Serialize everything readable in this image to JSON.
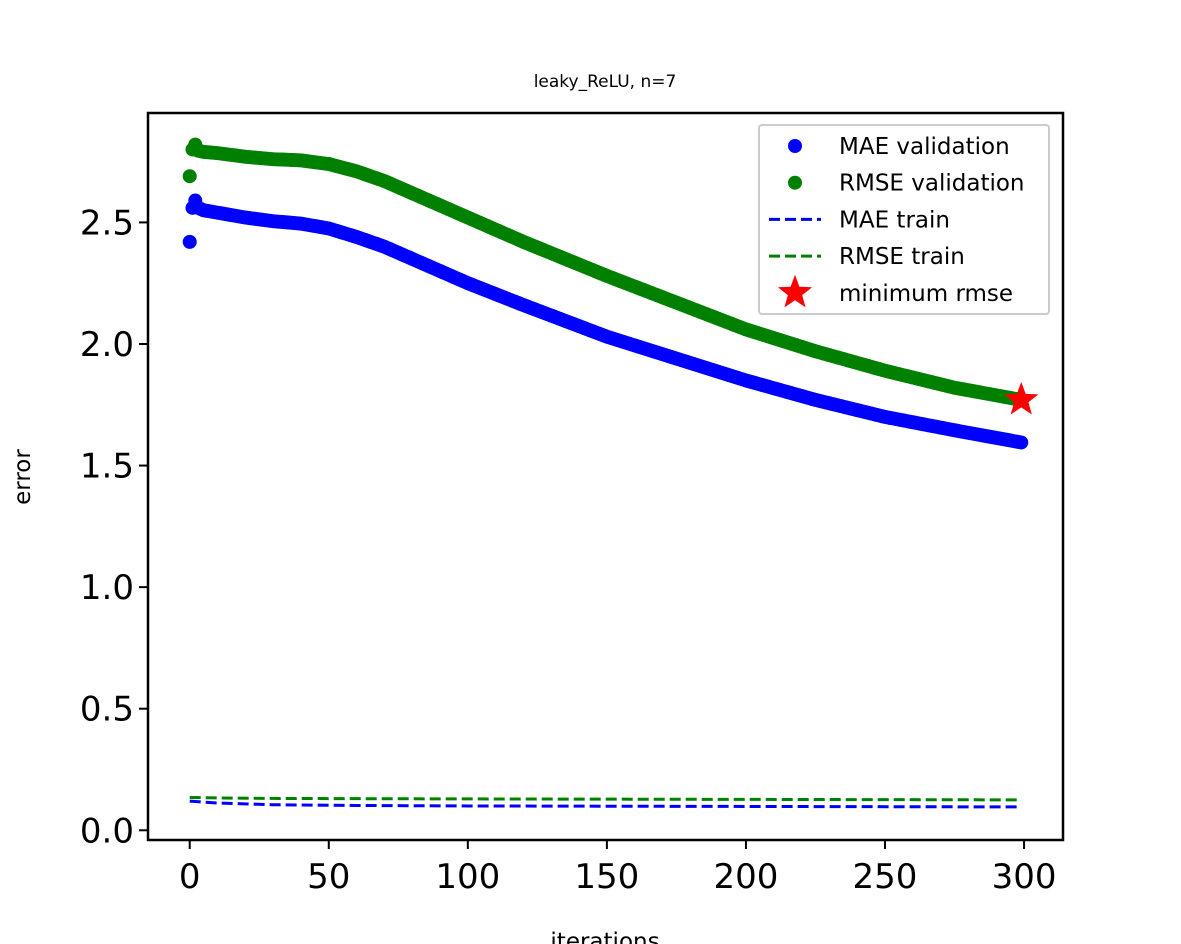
{
  "chart_data": {
    "type": "scatter",
    "title": "leaky_ReLU, n=7",
    "xlabel": "iterations",
    "ylabel": "error",
    "xlim": [
      -15,
      314
    ],
    "ylim": [
      -0.04,
      2.95
    ],
    "xticks": [
      "0",
      "50",
      "100",
      "150",
      "200",
      "250",
      "300"
    ],
    "yticks": [
      "0.0",
      "0.5",
      "1.0",
      "1.5",
      "2.0",
      "2.5"
    ],
    "grid": false,
    "legend_position": "top-right",
    "series": [
      {
        "name": "MAE validation",
        "kind": "markers",
        "color": "#0000ff",
        "x": [
          0,
          1,
          2,
          3,
          5,
          10,
          20,
          30,
          40,
          50,
          60,
          70,
          80,
          100,
          120,
          150,
          175,
          200,
          225,
          250,
          275,
          299
        ],
        "y": [
          2.42,
          2.56,
          2.59,
          2.56,
          2.55,
          2.54,
          2.52,
          2.505,
          2.495,
          2.475,
          2.44,
          2.4,
          2.35,
          2.25,
          2.16,
          2.03,
          1.94,
          1.85,
          1.77,
          1.7,
          1.645,
          1.595
        ]
      },
      {
        "name": "RMSE validation",
        "kind": "markers",
        "color": "#008000",
        "x": [
          0,
          1,
          2,
          3,
          5,
          10,
          20,
          30,
          40,
          50,
          60,
          70,
          80,
          100,
          120,
          150,
          175,
          200,
          225,
          250,
          275,
          299
        ],
        "y": [
          2.69,
          2.8,
          2.82,
          2.795,
          2.79,
          2.785,
          2.77,
          2.76,
          2.755,
          2.74,
          2.71,
          2.67,
          2.62,
          2.52,
          2.42,
          2.28,
          2.17,
          2.06,
          1.97,
          1.89,
          1.82,
          1.77
        ]
      },
      {
        "name": "MAE train",
        "kind": "dashed",
        "color": "#0000ff",
        "x": [
          0,
          10,
          30,
          60,
          100,
          150,
          200,
          250,
          299
        ],
        "y": [
          0.12,
          0.112,
          0.105,
          0.102,
          0.1,
          0.099,
          0.098,
          0.097,
          0.096
        ]
      },
      {
        "name": "RMSE train",
        "kind": "dashed",
        "color": "#008000",
        "x": [
          0,
          10,
          30,
          60,
          100,
          150,
          200,
          250,
          299
        ],
        "y": [
          0.135,
          0.133,
          0.131,
          0.13,
          0.129,
          0.128,
          0.127,
          0.126,
          0.125
        ]
      },
      {
        "name": "minimum rmse",
        "kind": "star",
        "color": "#ff0000",
        "x": [
          299
        ],
        "y": [
          1.77
        ]
      }
    ]
  }
}
